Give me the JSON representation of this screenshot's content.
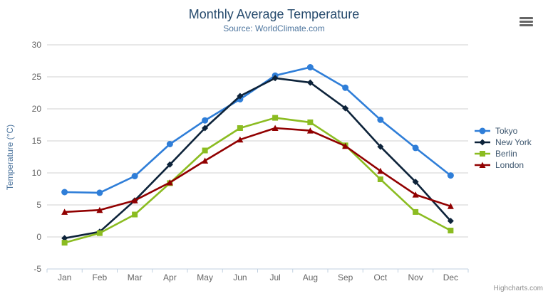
{
  "chart_data": {
    "type": "line",
    "title": "Monthly Average Temperature",
    "subtitle": "Source: WorldClimate.com",
    "categories": [
      "Jan",
      "Feb",
      "Mar",
      "Apr",
      "May",
      "Jun",
      "Jul",
      "Aug",
      "Sep",
      "Oct",
      "Nov",
      "Dec"
    ],
    "series": [
      {
        "name": "Tokyo",
        "color": "#2f7ed8",
        "marker": "circle",
        "values": [
          7.0,
          6.9,
          9.5,
          14.5,
          18.2,
          21.5,
          25.2,
          26.5,
          23.3,
          18.3,
          13.9,
          9.6
        ]
      },
      {
        "name": "New York",
        "color": "#0d233a",
        "marker": "diamond",
        "values": [
          -0.2,
          0.8,
          5.7,
          11.3,
          17.0,
          22.0,
          24.8,
          24.1,
          20.1,
          14.1,
          8.6,
          2.5
        ]
      },
      {
        "name": "Berlin",
        "color": "#8bbc21",
        "marker": "square",
        "values": [
          -0.9,
          0.6,
          3.5,
          8.4,
          13.5,
          17.0,
          18.6,
          17.9,
          14.3,
          9.0,
          3.9,
          1.0
        ]
      },
      {
        "name": "London",
        "color": "#910000",
        "marker": "triangle",
        "values": [
          3.9,
          4.2,
          5.7,
          8.5,
          11.9,
          15.2,
          17.0,
          16.6,
          14.2,
          10.3,
          6.6,
          4.8
        ]
      }
    ],
    "xlabel": "",
    "ylabel": "Temperature (°C)",
    "ylim": [
      -5,
      30
    ],
    "ytick_step": 5,
    "grid": true,
    "legend_position": "right"
  },
  "credit": {
    "label": "Highcharts.com"
  },
  "icons": {
    "export_menu": "hamburger-icon"
  },
  "colors": {
    "title": "#274b6d",
    "subtitle": "#4d759e",
    "axis_title": "#4d759e",
    "tick_label": "#666666",
    "grid_line": "#d0d0d0",
    "axis_line": "#c0d0e0",
    "legend_text": "#3e576f",
    "credit": "#909090",
    "export_icon": "#666666",
    "background": "#ffffff"
  }
}
